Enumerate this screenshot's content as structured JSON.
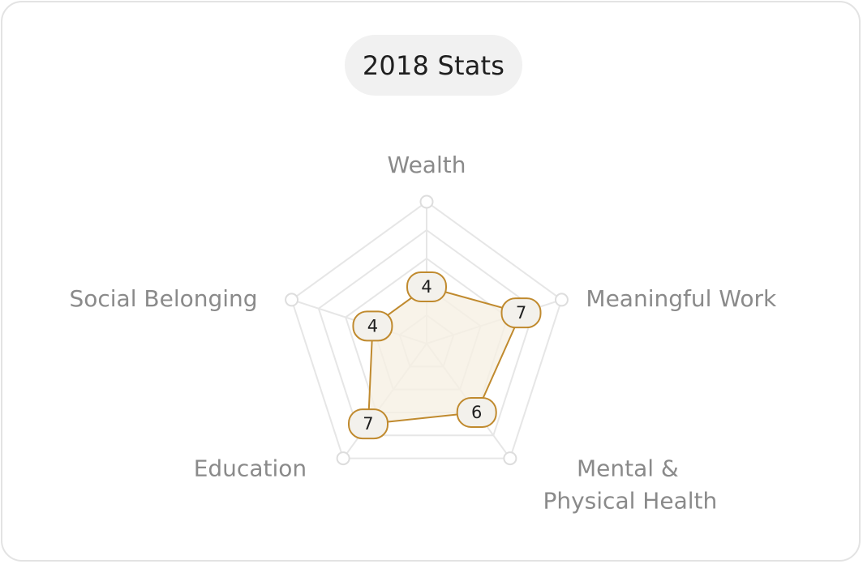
{
  "chart_data": {
    "type": "radar",
    "title": "2018 Stats",
    "axes": [
      "Wealth",
      "Meaningful Work",
      "Mental & Physical Health",
      "Education",
      "Social Belonging"
    ],
    "axis_label_lines": [
      [
        "Wealth"
      ],
      [
        "Meaningful Work"
      ],
      [
        "Mental &",
        "Physical Health"
      ],
      [
        "Education"
      ],
      [
        "Social Belonging"
      ]
    ],
    "values": [
      4,
      7,
      6,
      7,
      4
    ],
    "range": [
      0,
      10
    ],
    "grid_levels": 5
  },
  "colors": {
    "series_stroke": "#c08a2e",
    "series_fill": "#f6f0e4",
    "badge_fill": "#f3f1ec",
    "grid": "#e6e6e6",
    "label": "#8a8a8a",
    "title_bg": "#f1f1f1"
  }
}
